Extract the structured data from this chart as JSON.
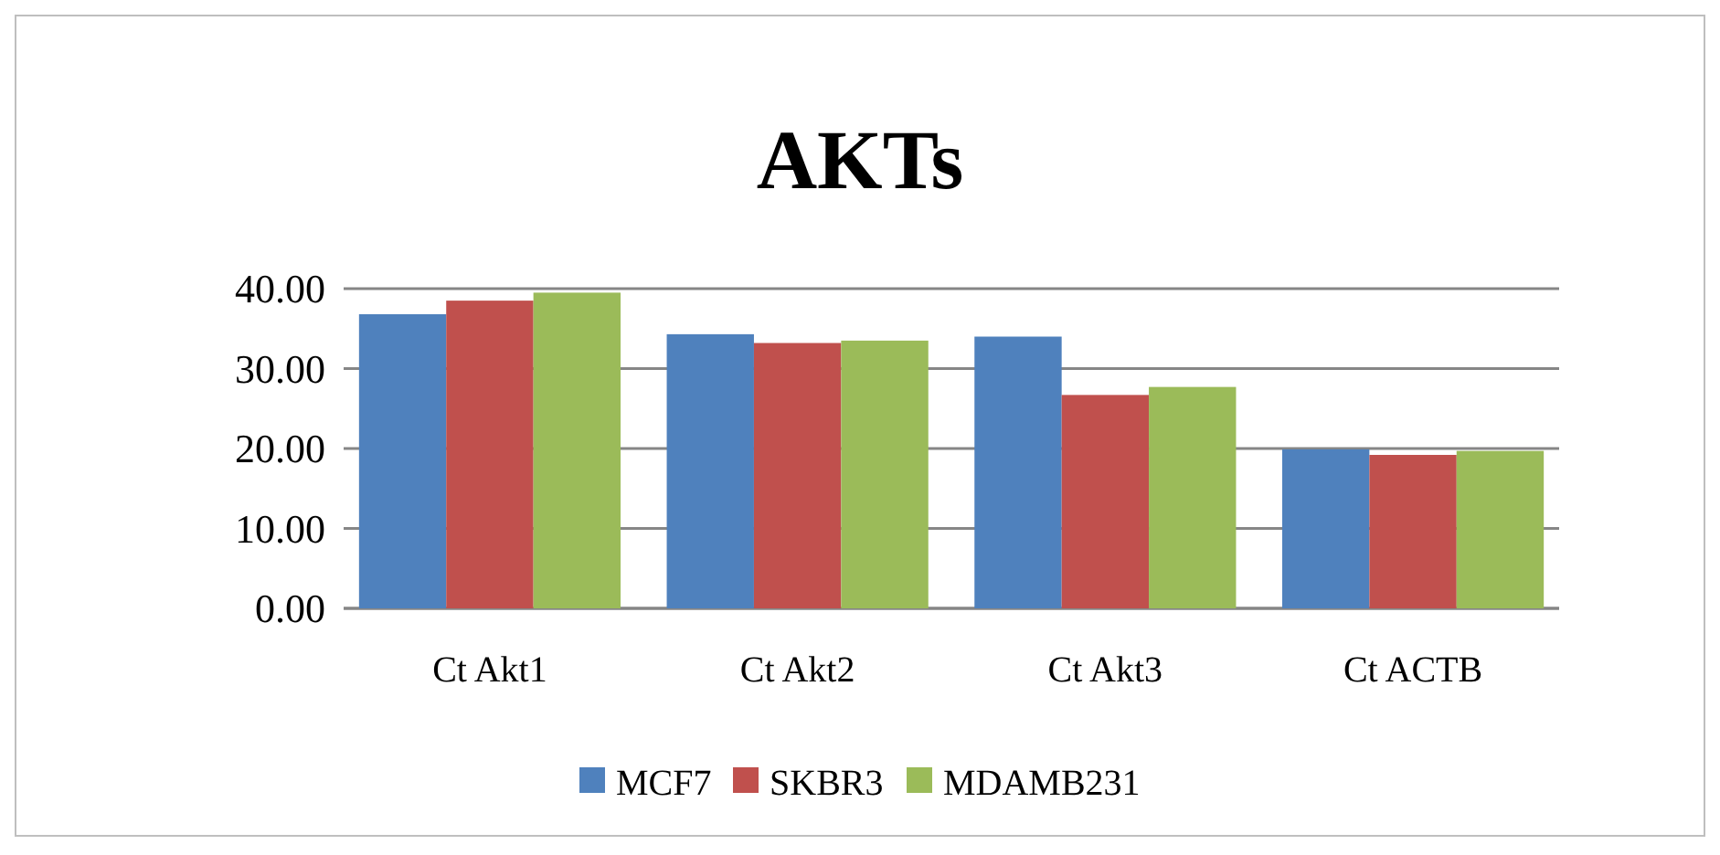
{
  "chart_data": {
    "type": "bar",
    "title": "AKTs",
    "categories": [
      "Ct Akt1",
      "Ct Akt2",
      "Ct Akt3",
      "Ct ACTB"
    ],
    "series": [
      {
        "name": "MCF7",
        "color": "#4f81bd",
        "values": [
          36.8,
          34.3,
          34.0,
          19.9
        ]
      },
      {
        "name": "SKBR3",
        "color": "#c0504d",
        "values": [
          38.5,
          33.2,
          26.7,
          19.2
        ]
      },
      {
        "name": "MDAMB231",
        "color": "#9bbb59",
        "values": [
          39.5,
          33.5,
          27.7,
          19.7
        ]
      }
    ],
    "ylim": [
      0,
      40
    ],
    "yticks": [
      {
        "value": 0,
        "label": "0.00"
      },
      {
        "value": 10,
        "label": "10.00"
      },
      {
        "value": 20,
        "label": "20.00"
      },
      {
        "value": 30,
        "label": "30.00"
      },
      {
        "value": 40,
        "label": "40.00"
      }
    ],
    "grid": "y",
    "legend": "bottom"
  }
}
